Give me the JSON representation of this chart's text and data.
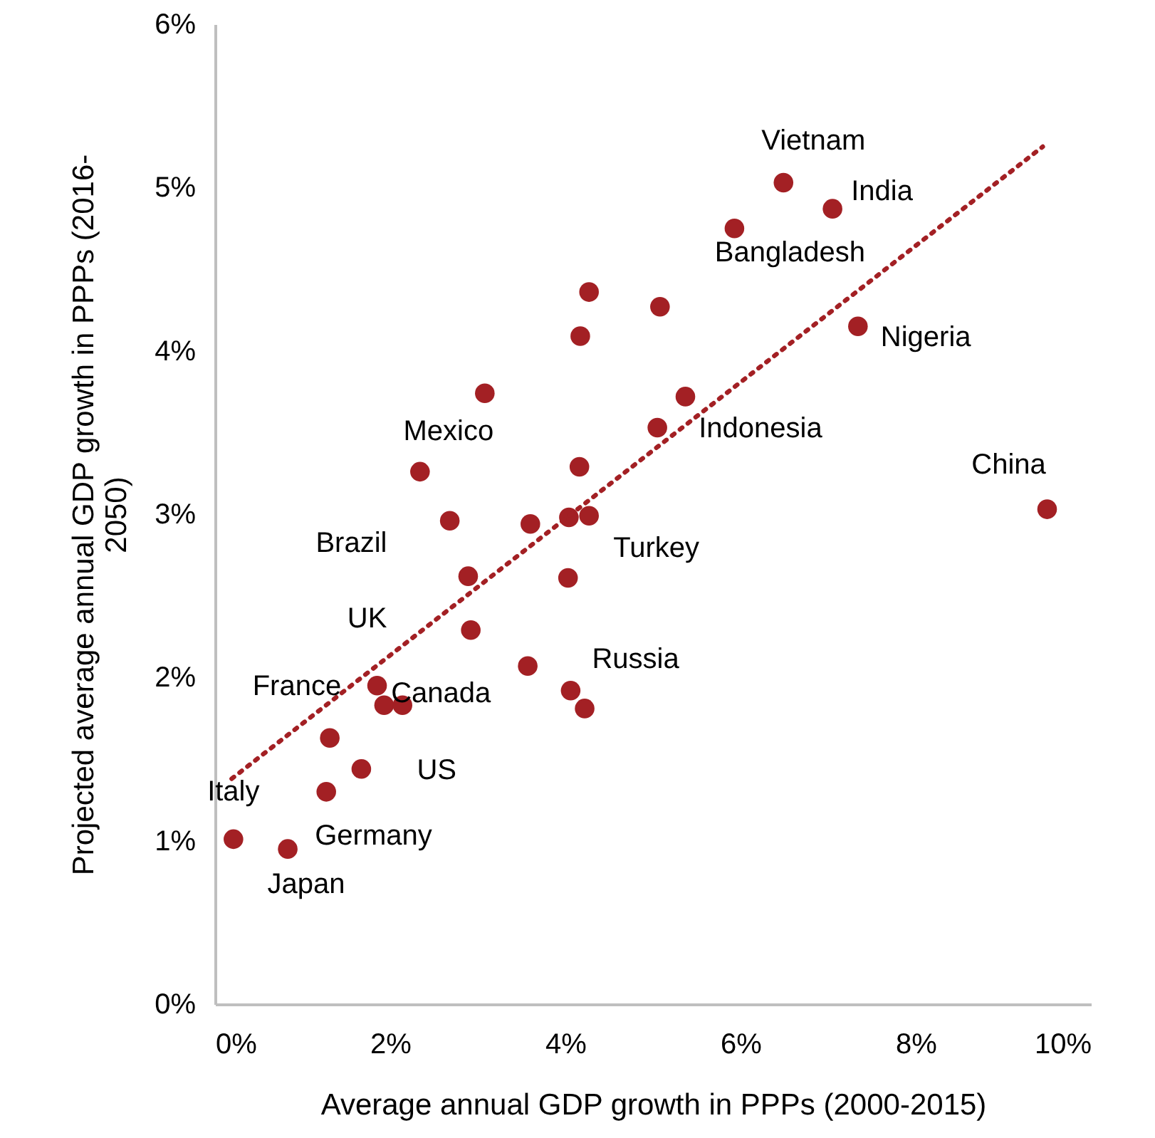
{
  "chart_data": {
    "type": "scatter",
    "xlabel": "Average annual GDP growth in PPPs (2000-2015)",
    "ylabel": "Projected average annual GDP growth in PPPs (2016-2050)",
    "xlim": [
      0,
      10
    ],
    "xticks": [
      {
        "value": 0,
        "label": "0%"
      },
      {
        "value": 2,
        "label": "2%"
      },
      {
        "value": 4,
        "label": "4%"
      },
      {
        "value": 6,
        "label": "6%"
      },
      {
        "value": 8,
        "label": "8%"
      },
      {
        "value": 10,
        "label": "10%"
      }
    ],
    "ylim": [
      0,
      6
    ],
    "yticks": [
      {
        "value": 0,
        "label": "0%"
      },
      {
        "value": 1,
        "label": "1%"
      },
      {
        "value": 2,
        "label": "2%"
      },
      {
        "value": 3,
        "label": "3%"
      },
      {
        "value": 4,
        "label": "4%"
      },
      {
        "value": 5,
        "label": "5%"
      },
      {
        "value": 6,
        "label": "6%"
      }
    ],
    "grid": false,
    "series": [
      {
        "color": "#a32024",
        "marker": "circle",
        "x": [
          6.49,
          7.05,
          5.93,
          7.34,
          9.5,
          5.37,
          5.05,
          4.27,
          5.08,
          4.17,
          3.08,
          2.34,
          4.16,
          2.68,
          3.6,
          4.04,
          4.27,
          2.89,
          4.03,
          2.92,
          3.57,
          4.06,
          4.22,
          1.85,
          1.93,
          2.14,
          1.31,
          1.67,
          1.27,
          0.21,
          0.83
        ],
        "values": [
          5.03,
          4.87,
          4.75,
          4.15,
          3.03,
          3.72,
          3.53,
          4.36,
          4.27,
          4.09,
          3.74,
          3.26,
          3.29,
          2.96,
          2.94,
          2.98,
          2.99,
          2.62,
          2.61,
          2.29,
          2.07,
          1.92,
          1.81,
          1.95,
          1.83,
          1.83,
          1.63,
          1.44,
          1.3,
          1.01,
          0.95
        ]
      },
      {
        "type": "line",
        "color": "#a32024",
        "line_style": "dotted",
        "x": [
          0.19,
          9.45
        ],
        "values": [
          1.38,
          5.25
        ]
      }
    ],
    "annotations": [
      {
        "text": "Vietnam",
        "x": 6.49,
        "y": 5.03
      },
      {
        "text": "India",
        "x": 7.05,
        "y": 4.87
      },
      {
        "text": "Bangladesh",
        "x": 5.93,
        "y": 4.75
      },
      {
        "text": "Nigeria",
        "x": 7.34,
        "y": 4.15
      },
      {
        "text": "China",
        "x": 9.5,
        "y": 3.03
      },
      {
        "text": "Indonesia",
        "x": 5.05,
        "y": 3.53
      },
      {
        "text": "Mexico",
        "x": 2.34,
        "y": 3.26
      },
      {
        "text": "Turkey",
        "x": 4.27,
        "y": 2.99
      },
      {
        "text": "Brazil",
        "x": 2.89,
        "y": 2.62
      },
      {
        "text": "UK",
        "x": 1.85,
        "y": 1.95
      },
      {
        "text": "Canada",
        "x": 2.14,
        "y": 1.83
      },
      {
        "text": "US",
        "x": 1.93,
        "y": 1.83
      },
      {
        "text": "France",
        "x": 1.31,
        "y": 1.63
      },
      {
        "text": "Russia",
        "x": 4.06,
        "y": 1.92
      },
      {
        "text": "Italy",
        "x": 0.21,
        "y": 1.01
      },
      {
        "text": "Germany",
        "x": 1.27,
        "y": 1.3
      },
      {
        "text": "Japan",
        "x": 0.83,
        "y": 0.95
      }
    ]
  }
}
